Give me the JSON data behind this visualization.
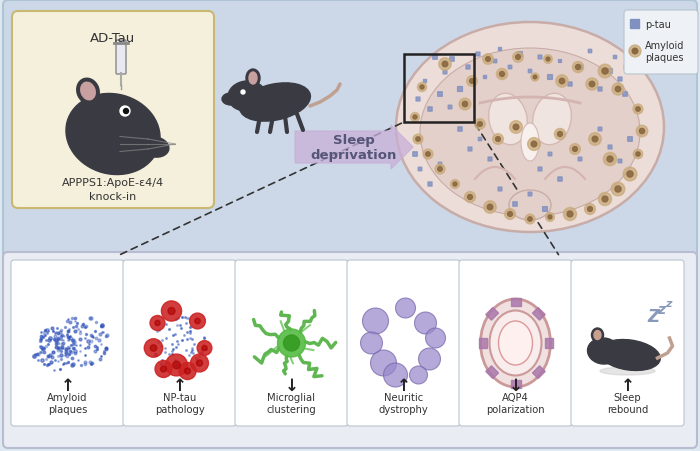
{
  "bg_color": "#dde8f0",
  "top_panel_bg": "#ccd8e8",
  "top_panel_border": "#b0c4d8",
  "box_yellow_bg": "#f5f0dc",
  "box_yellow_border": "#c8b870",
  "bottom_panel_bg": "#eaecf4",
  "bottom_panel_border": "#b8bcd0",
  "bottom_box_bg": "#ffffff",
  "bottom_box_border": "#b8c4d0",
  "arrow_color": "#c8b0d8",
  "text_dark": "#333333",
  "brain_fill": "#ecddd8",
  "brain_border": "#c8aca8",
  "brain_inner": "#e0d0cc",
  "legend_box_bg": "#eef2f6",
  "legend_box_border": "#b8c4cc",
  "panel_labels": [
    "Amyloid\nplaques",
    "NP-tau\npathology",
    "Microglial\nclustering",
    "Neuritic\ndystrophy",
    "AQP4\npolarization",
    "Sleep\nrebound"
  ],
  "panel_arrows": [
    "↑",
    "↑",
    "↓",
    "↑",
    "↓",
    "↑"
  ],
  "ad_tau_label": "AD-Tau",
  "mouse_label": "APPPS1:ApoE-ε4/4\nknock-in",
  "sleep_label": "Sleep\ndeprivation",
  "legend_ptau": "p-tau",
  "legend_amyloid": "Amyloid\nplaques"
}
